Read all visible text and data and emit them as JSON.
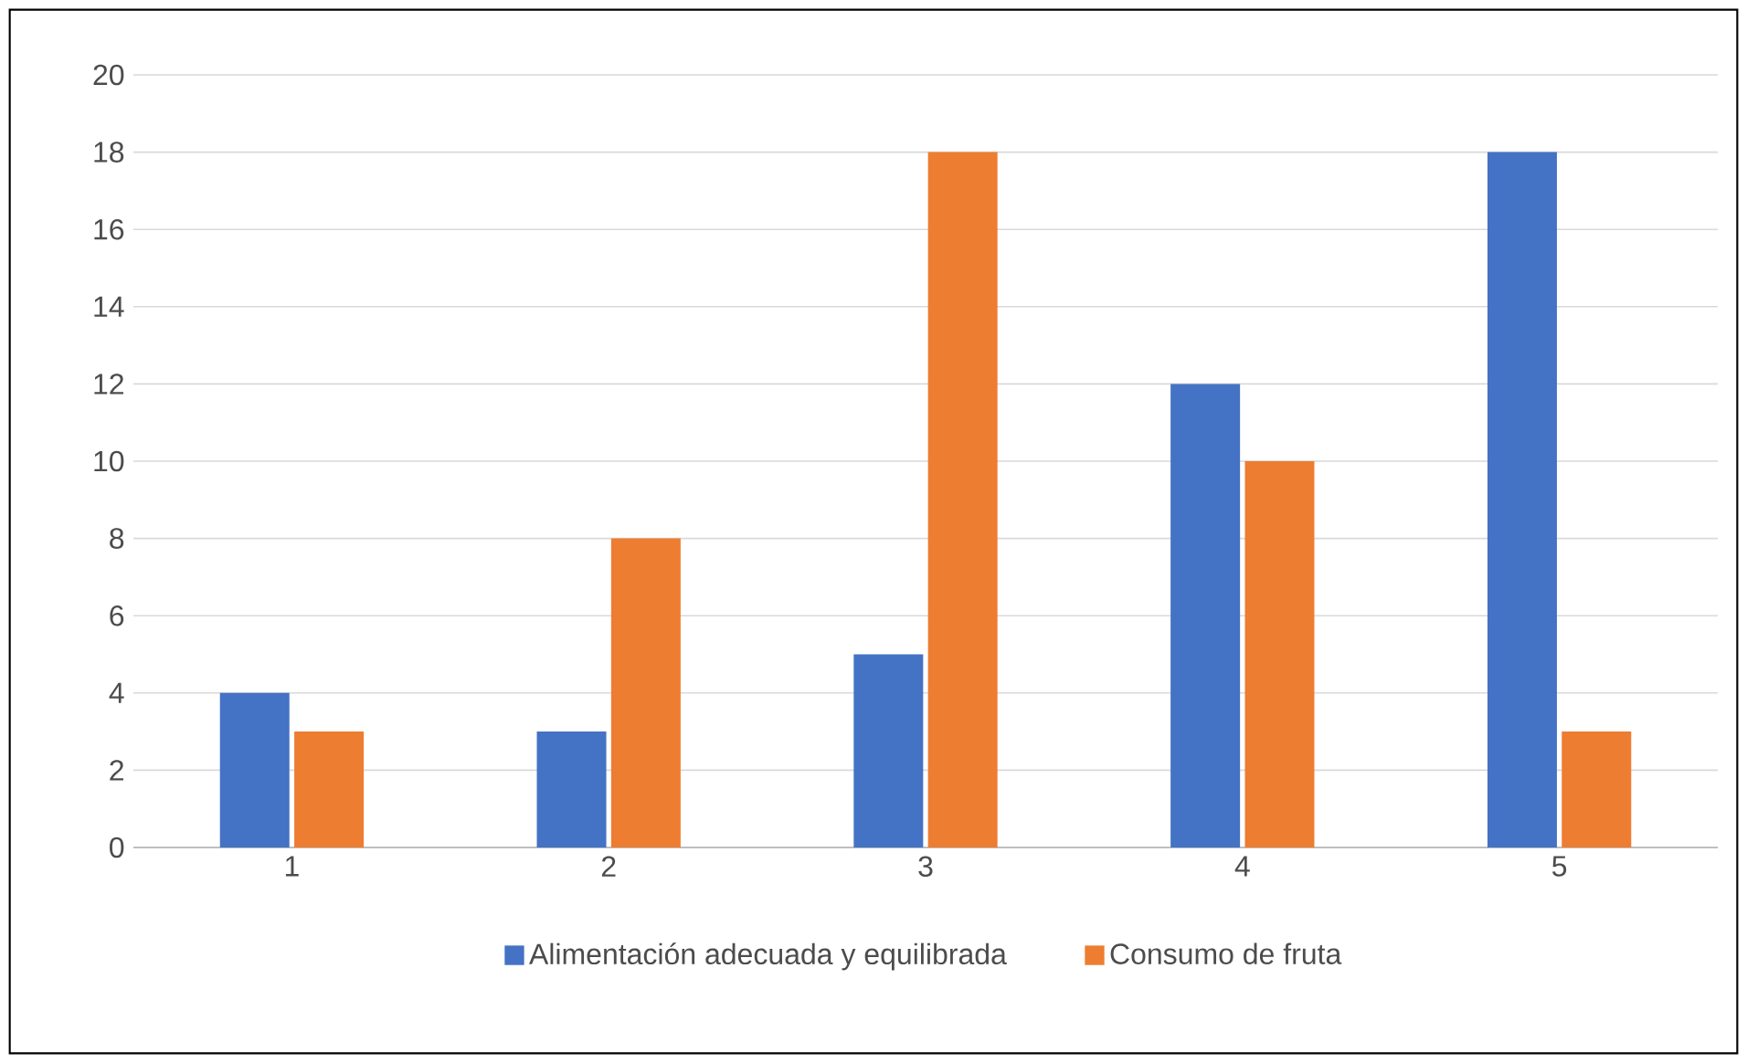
{
  "chart_data": {
    "type": "bar",
    "categories": [
      "1",
      "2",
      "3",
      "4",
      "5"
    ],
    "series": [
      {
        "name": "Alimentación adecuada y equilibrada",
        "color": "#4472c4",
        "values": [
          4,
          3,
          5,
          12,
          18
        ]
      },
      {
        "name": "Consumo de fruta",
        "color": "#ed7d31",
        "values": [
          3,
          8,
          18,
          10,
          3
        ]
      }
    ],
    "ylim": [
      0,
      20
    ],
    "yticks": [
      0,
      2,
      4,
      6,
      8,
      10,
      12,
      14,
      16,
      18,
      20
    ],
    "grid": "y",
    "legend": "bottom"
  }
}
